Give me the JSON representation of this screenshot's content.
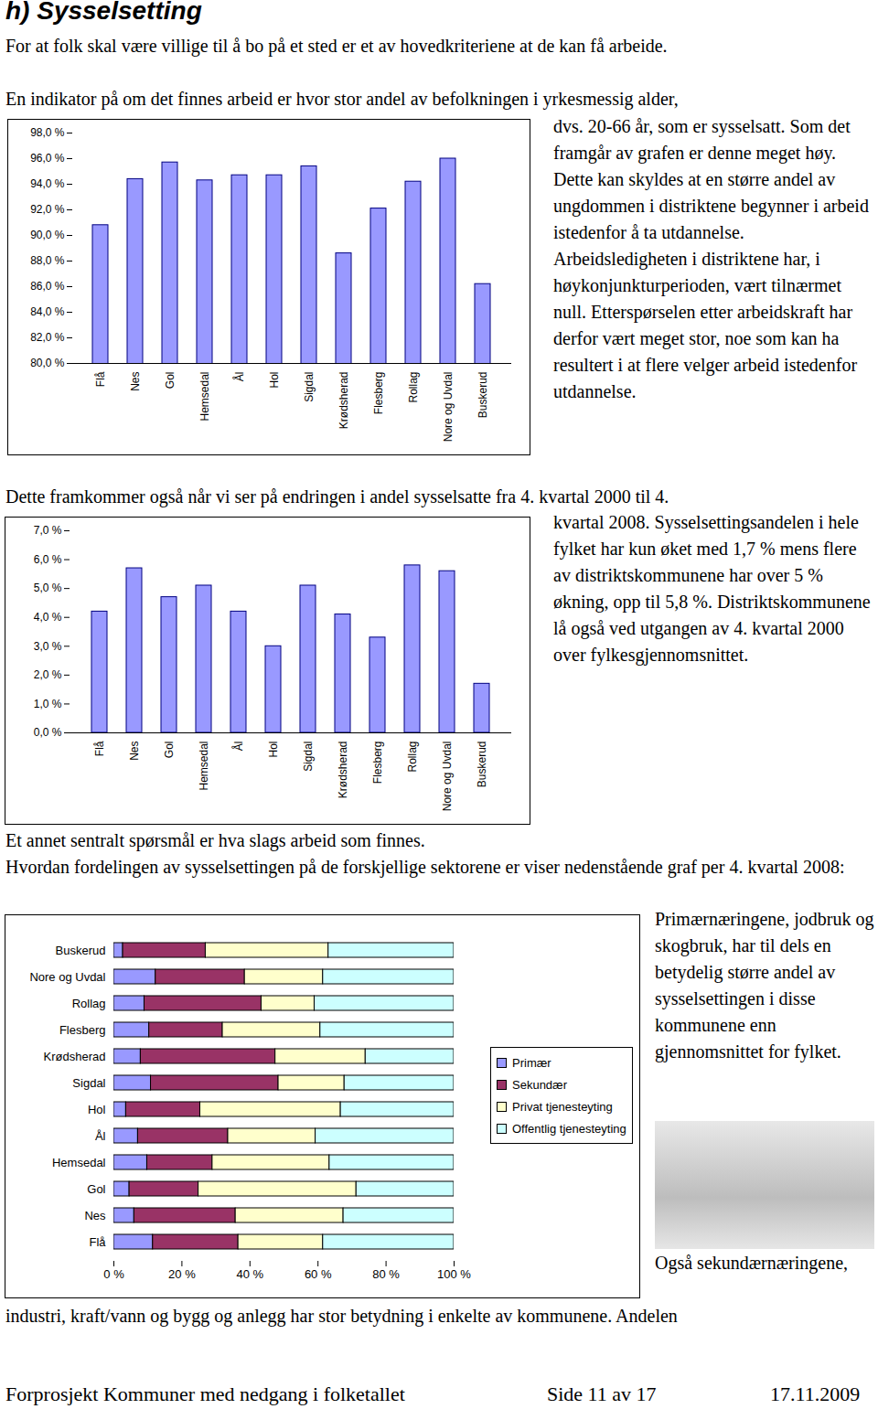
{
  "document": {
    "heading": "h) Sysselsetting",
    "paragraphs": [
      "For at folk skal være villige til å bo på et sted er et av hovedkriteriene at de kan få arbeide.",
      "En indikator på om det finnes arbeid er hvor stor andel av befolkningen i yrkesmessig alder,",
      "dvs. 20-66 år, som er sysselsatt. Som det framgår av grafen er denne meget høy. Dette kan skyldes at en større andel av ungdommen i distriktene begynner i arbeid istedenfor å ta utdannelse. Arbeidsledigheten i distriktene har, i høykonjunkturperioden, vært tilnærmet null. Etterspørselen etter arbeidskraft har derfor vært meget stor, noe som kan ha resultert i at flere velger arbeid istedenfor utdannelse.",
      "Dette framkommer også når vi ser på endringen i andel sysselsatte fra 4. kvartal 2000 til 4.",
      "kvartal 2008. Sysselsettingsandelen i hele fylket har kun øket med 1,7 % mens flere av distriktskommunene har over 5 % økning, opp til 5,8 %. Distriktskommunene lå også ved utgangen av 4. kvartal 2000 over fylkesgjennomsnittet.",
      "Et annet sentralt spørsmål er hva slags arbeid som finnes.",
      "Hvordan fordelingen av sysselsettingen på de forskjellige sektorene er viser nedenstående graf per 4. kvartal 2008:",
      "Primærnæringene, jodbruk og skogbruk, har til dels en betydelig større andel av sysselsettingen i disse kommunene enn gjennomsnittet for fylket.",
      "Også sekundærnæringene,",
      "industri, kraft/vann og bygg og anlegg har stor betydning i enkelte av kommunene. Andelen"
    ],
    "footer": [
      "Forprosjekt Kommuner med nedgang i folketallet",
      "Side 11 av 17",
      "17.11.2009"
    ]
  },
  "chart_data": [
    {
      "type": "bar",
      "categories": [
        "Flå",
        "Nes",
        "Gol",
        "Hemsedal",
        "Ål",
        "Hol",
        "Sigdal",
        "Krødsherad",
        "Flesberg",
        "Rollag",
        "Nore og Uvdal",
        "Buskerud"
      ],
      "values": [
        90.8,
        94.4,
        95.7,
        94.3,
        94.7,
        94.7,
        95.4,
        88.6,
        92.1,
        94.2,
        96.0,
        86.2
      ],
      "color": "#9999ff",
      "ylim": [
        80,
        98
      ],
      "yticks": [
        {
          "value": 80,
          "label": "80,0 %"
        },
        {
          "value": 82,
          "label": "82,0 %"
        },
        {
          "value": 84,
          "label": "84,0 %"
        },
        {
          "value": 86,
          "label": "86,0 %"
        },
        {
          "value": 88,
          "label": "88,0 %"
        },
        {
          "value": 90,
          "label": "90,0 %"
        },
        {
          "value": 92,
          "label": "92,0 %"
        },
        {
          "value": 94,
          "label": "94,0 %"
        },
        {
          "value": 96,
          "label": "96,0 %"
        },
        {
          "value": 98,
          "label": "98,0 %"
        }
      ],
      "grid": false
    },
    {
      "type": "bar",
      "categories": [
        "Flå",
        "Nes",
        "Gol",
        "Hemsedal",
        "Ål",
        "Hol",
        "Sigdal",
        "Krødsherad",
        "Flesberg",
        "Rollag",
        "Nore og Uvdal",
        "Buskerud"
      ],
      "values": [
        4.2,
        5.7,
        4.7,
        5.1,
        4.2,
        3.0,
        5.1,
        4.1,
        3.3,
        5.8,
        5.6,
        1.7
      ],
      "color": "#9999ff",
      "ylim": [
        0,
        7
      ],
      "yticks": [
        {
          "value": 0,
          "label": "0,0 %"
        },
        {
          "value": 1,
          "label": "1,0 %"
        },
        {
          "value": 2,
          "label": "2,0 %"
        },
        {
          "value": 3,
          "label": "3,0 %"
        },
        {
          "value": 4,
          "label": "4,0 %"
        },
        {
          "value": 5,
          "label": "5,0 %"
        },
        {
          "value": 6,
          "label": "6,0 %"
        },
        {
          "value": 7,
          "label": "7,0 %"
        }
      ],
      "grid": false
    },
    {
      "type": "bar",
      "orientation": "horizontal",
      "stacked": true,
      "legend": "right",
      "categories": [
        "Buskerud",
        "Nore og Uvdal",
        "Rollag",
        "Flesberg",
        "Krødsherad",
        "Sigdal",
        "Hol",
        "Ål",
        "Hemsedal",
        "Gol",
        "Nes",
        "Flå"
      ],
      "series": [
        {
          "name": "Primær",
          "color": "#9999ff",
          "values": [
            2.7,
            12.3,
            9.0,
            10.4,
            7.9,
            10.9,
            3.6,
            7.1,
            9.8,
            4.6,
            6.0,
            11.5
          ]
        },
        {
          "name": "Sekundær",
          "color": "#993366",
          "values": [
            24.3,
            26.2,
            34.4,
            21.6,
            39.6,
            37.5,
            21.8,
            26.5,
            19.2,
            20.3,
            29.8,
            25.1
          ]
        },
        {
          "name": "Privat tjenesteyting",
          "color": "#ffffcc",
          "values": [
            36.1,
            23.0,
            15.6,
            28.7,
            26.5,
            19.4,
            41.3,
            25.7,
            34.4,
            46.4,
            31.7,
            24.9
          ]
        },
        {
          "name": "Offentlig tjenesteyting",
          "color": "#ccffff",
          "values": [
            36.9,
            38.5,
            41.0,
            39.3,
            26.0,
            32.2,
            33.3,
            40.7,
            36.6,
            28.7,
            32.5,
            38.5
          ]
        }
      ],
      "xlim": [
        0,
        100
      ],
      "xticks": [
        {
          "value": 0,
          "label": "0 %"
        },
        {
          "value": 20,
          "label": "20 %"
        },
        {
          "value": 40,
          "label": "40 %"
        },
        {
          "value": 60,
          "label": "60 %"
        },
        {
          "value": 80,
          "label": "80 %"
        },
        {
          "value": 100,
          "label": "100 %"
        }
      ],
      "grid": false
    }
  ]
}
